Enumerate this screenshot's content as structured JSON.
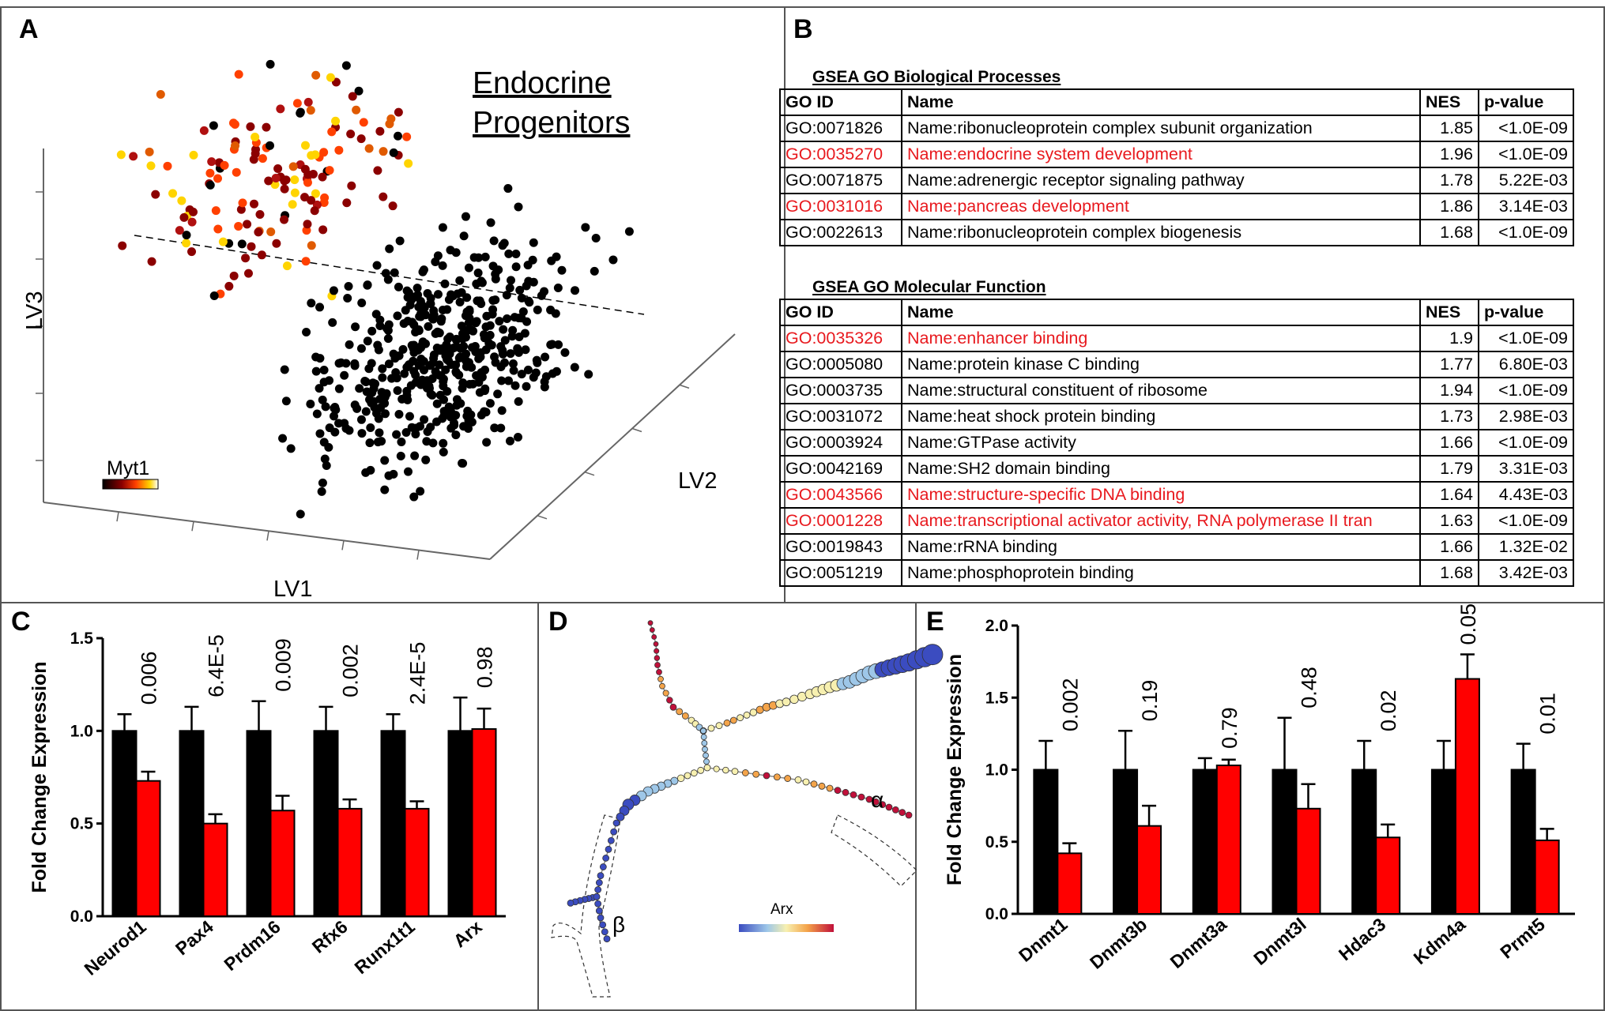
{
  "figure": {
    "panels": {
      "a": "A",
      "b": "B",
      "c": "C",
      "d": "D",
      "e": "E"
    }
  },
  "panel_a": {
    "title_line1": "Endocrine",
    "title_line2": "Progenitors",
    "axis_z": "LV3",
    "axis_y": "LV2",
    "axis_x": "LV1",
    "colorbar_label": "Myt1",
    "colormap": [
      "#000000",
      "#8b0000",
      "#ff4000",
      "#ffd400",
      "#ffffff"
    ]
  },
  "panel_b": {
    "bp_title": "GSEA GO Biological Processes",
    "mf_title": "GSEA GO Molecular Function",
    "headers": [
      "GO ID",
      "Name",
      "NES",
      "p-value"
    ],
    "highlight_color": "#e8191e",
    "bp_rows": [
      {
        "id": "GO:0071826",
        "name": "Name:ribonucleoprotein complex subunit organization",
        "nes": "1.85",
        "p": "<1.0E-09",
        "hl": false
      },
      {
        "id": "GO:0035270",
        "name": "Name:endocrine system development",
        "nes": "1.96",
        "p": "<1.0E-09",
        "hl": true
      },
      {
        "id": "GO:0071875",
        "name": "Name:adrenergic receptor signaling pathway",
        "nes": "1.78",
        "p": "5.22E-03",
        "hl": false
      },
      {
        "id": "GO:0031016",
        "name": "Name:pancreas development",
        "nes": "1.86",
        "p": "3.14E-03",
        "hl": true
      },
      {
        "id": "GO:0022613",
        "name": "Name:ribonucleoprotein complex biogenesis",
        "nes": "1.68",
        "p": "<1.0E-09",
        "hl": false
      }
    ],
    "mf_rows": [
      {
        "id": "GO:0035326",
        "name": "Name:enhancer binding",
        "nes": "1.9",
        "p": "<1.0E-09",
        "hl": true
      },
      {
        "id": "GO:0005080",
        "name": "Name:protein kinase C binding",
        "nes": "1.77",
        "p": "6.80E-03",
        "hl": false
      },
      {
        "id": "GO:0003735",
        "name": "Name:structural constituent of ribosome",
        "nes": "1.94",
        "p": "<1.0E-09",
        "hl": false
      },
      {
        "id": "GO:0031072",
        "name": "Name:heat shock protein binding",
        "nes": "1.73",
        "p": "2.98E-03",
        "hl": false
      },
      {
        "id": "GO:0003924",
        "name": "Name:GTPase activity",
        "nes": "1.66",
        "p": "<1.0E-09",
        "hl": false
      },
      {
        "id": "GO:0042169",
        "name": "Name:SH2 domain binding",
        "nes": "1.79",
        "p": "3.31E-03",
        "hl": false
      },
      {
        "id": "GO:0043566",
        "name": "Name:structure-specific DNA binding",
        "nes": "1.64",
        "p": "4.43E-03",
        "hl": true
      },
      {
        "id": "GO:0001228",
        "name": "Name:transcriptional activator activity, RNA polymerase II tran",
        "nes": "1.63",
        "p": "<1.0E-09",
        "hl": true
      },
      {
        "id": "GO:0019843",
        "name": "Name:rRNA binding",
        "nes": "1.66",
        "p": "1.32E-02",
        "hl": false
      },
      {
        "id": "GO:0051219",
        "name": "Name:phosphoprotein binding",
        "nes": "1.68",
        "p": "3.42E-03",
        "hl": false
      }
    ]
  },
  "panel_d": {
    "colorbar_label": "Arx",
    "branch_alpha": "α",
    "branch_beta": "β",
    "colormap": [
      "#3b4cc0",
      "#9ec7e8",
      "#f7f0b0",
      "#f4a44a",
      "#c0103a"
    ]
  },
  "chart_data": [
    {
      "type": "bar",
      "panel": "C",
      "ylabel": "Fold Change Expression",
      "ylim": [
        0,
        1.5
      ],
      "yticks": [
        "0.0",
        "0.5",
        "1.0",
        "1.5"
      ],
      "categories": [
        "Neurod1",
        "Pax4",
        "Prdm16",
        "Rfx6",
        "Runx1t1",
        "Arx"
      ],
      "series": [
        {
          "color": "#000000",
          "values": [
            1.0,
            1.0,
            1.0,
            1.0,
            1.0,
            1.0
          ],
          "errors": [
            0.09,
            0.13,
            0.16,
            0.13,
            0.09,
            0.18
          ]
        },
        {
          "color": "#ff0000",
          "values": [
            0.73,
            0.5,
            0.57,
            0.58,
            0.58,
            1.01
          ],
          "errors": [
            0.05,
            0.05,
            0.08,
            0.05,
            0.04,
            0.11
          ]
        }
      ],
      "pvalues": [
        "0.006",
        "6.4E-5",
        "0.009",
        "0.002",
        "2.4E-5",
        "0.98"
      ]
    },
    {
      "type": "bar",
      "panel": "E",
      "ylabel": "Fold Change Expression",
      "ylim": [
        0,
        2.0
      ],
      "yticks": [
        "0.0",
        "0.5",
        "1.0",
        "1.5",
        "2.0"
      ],
      "categories": [
        "Dnmt1",
        "Dnmt3b",
        "Dnmt3a",
        "Dnmt3l",
        "Hdac3",
        "Kdm4a",
        "Prmt5"
      ],
      "series": [
        {
          "color": "#000000",
          "values": [
            1.0,
            1.0,
            1.0,
            1.0,
            1.0,
            1.0,
            1.0
          ],
          "errors": [
            0.2,
            0.27,
            0.08,
            0.36,
            0.2,
            0.2,
            0.18
          ]
        },
        {
          "color": "#ff0000",
          "values": [
            0.42,
            0.61,
            1.03,
            0.73,
            0.53,
            1.63,
            0.51
          ],
          "errors": [
            0.07,
            0.14,
            0.04,
            0.17,
            0.09,
            0.17,
            0.08
          ]
        }
      ],
      "pvalues": [
        "0.002",
        "0.19",
        "0.79",
        "0.48",
        "0.02",
        "0.05",
        "0.01"
      ]
    }
  ]
}
